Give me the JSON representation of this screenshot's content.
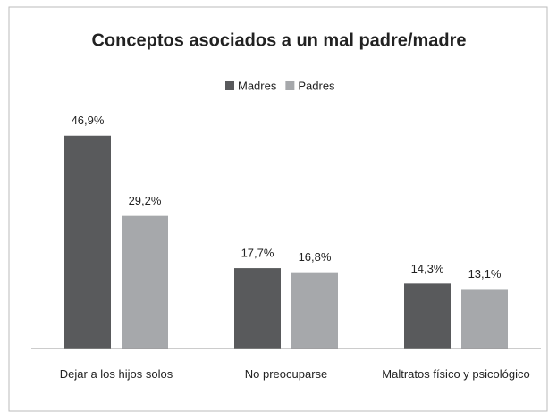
{
  "chart_data": {
    "type": "bar",
    "title": "Conceptos asociados a un mal padre/madre",
    "categories": [
      "Dejar a los hijos solos",
      "No preocuparse",
      "Maltratos físico y psicológico"
    ],
    "series": [
      {
        "name": "Madres",
        "color": "#595a5c",
        "values": [
          46.9,
          17.7,
          14.3
        ],
        "value_labels": [
          "46,9%",
          "17,7%",
          "14,3%"
        ]
      },
      {
        "name": "Padres",
        "color": "#a6a8ab",
        "values": [
          29.2,
          16.8,
          13.1
        ],
        "value_labels": [
          "29,2%",
          "16,8%",
          "13,1%"
        ]
      }
    ],
    "ylim": [
      0,
      50
    ],
    "legend": "top"
  }
}
